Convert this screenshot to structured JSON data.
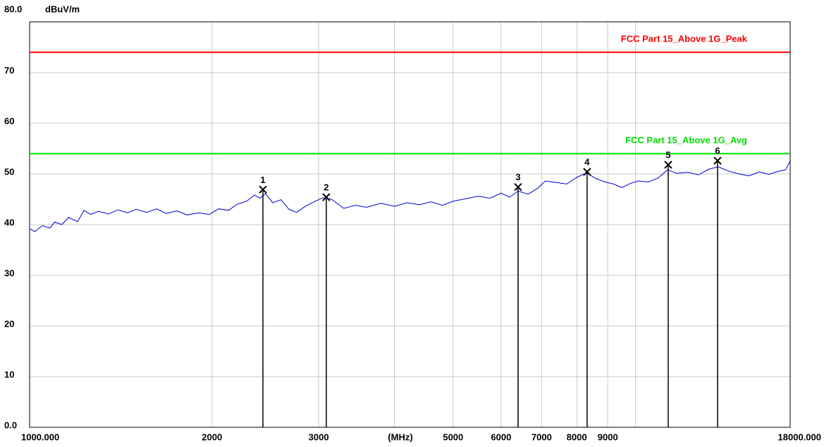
{
  "chart_data": {
    "type": "emission-scan",
    "y_unit": "dBuV/m",
    "xlabel": "(MHz)",
    "xscale": "log",
    "xlim": [
      1000,
      18000
    ],
    "ylim": [
      0,
      80
    ],
    "xticks": [
      {
        "value": 1000,
        "label": "1000.000"
      },
      2000,
      3000,
      5000,
      6000,
      7000,
      8000,
      9000,
      {
        "value": 18000,
        "label": "18000.000"
      }
    ],
    "xminor": [
      4000,
      10000
    ],
    "yticks": [
      {
        "value": 0,
        "label": "0.0"
      },
      10,
      20,
      30,
      40,
      50,
      60,
      70,
      {
        "value": 80,
        "label": "80.0"
      }
    ],
    "grid": true,
    "limits": [
      {
        "name": "FCC Part 15_Above 1G_Peak",
        "value": 74,
        "color": "#ff0000"
      },
      {
        "name": "FCC Part 15_Above 1G_Avg",
        "value": 54,
        "color": "#00e000"
      }
    ],
    "trace": {
      "color": "#0000dd",
      "x": [
        1000,
        1020,
        1050,
        1080,
        1100,
        1130,
        1160,
        1200,
        1230,
        1260,
        1300,
        1350,
        1400,
        1450,
        1500,
        1560,
        1620,
        1680,
        1750,
        1820,
        1900,
        1980,
        2050,
        2130,
        2200,
        2280,
        2350,
        2400,
        2450,
        2520,
        2600,
        2680,
        2760,
        2850,
        2950,
        3050,
        3150,
        3300,
        3450,
        3600,
        3800,
        4000,
        4200,
        4400,
        4600,
        4800,
        5000,
        5250,
        5500,
        5750,
        6000,
        6200,
        6400,
        6650,
        6900,
        7100,
        7400,
        7700,
        8000,
        8300,
        8600,
        8900,
        9200,
        9500,
        9800,
        10100,
        10500,
        10900,
        11300,
        11700,
        12200,
        12700,
        13200,
        13700,
        14200,
        14800,
        15400,
        16000,
        16600,
        17200,
        17700,
        18000
      ],
      "values": [
        39.2,
        38.6,
        39.8,
        39.3,
        40.5,
        40.0,
        41.4,
        40.6,
        42.8,
        42.0,
        42.6,
        42.1,
        42.9,
        42.3,
        43.0,
        42.4,
        43.1,
        42.2,
        42.7,
        41.9,
        42.3,
        42.0,
        43.1,
        42.8,
        44.0,
        44.6,
        45.8,
        45.2,
        46.1,
        44.3,
        44.9,
        43.0,
        42.4,
        43.6,
        44.5,
        45.3,
        45.0,
        43.2,
        43.8,
        43.4,
        44.2,
        43.6,
        44.3,
        43.9,
        44.5,
        43.8,
        44.6,
        45.1,
        45.6,
        45.2,
        46.2,
        45.4,
        46.6,
        46.0,
        47.2,
        48.6,
        48.3,
        48.0,
        49.3,
        50.2,
        49.1,
        48.4,
        48.0,
        47.3,
        48.1,
        48.6,
        48.4,
        49.2,
        50.8,
        50.1,
        50.3,
        49.8,
        50.9,
        51.4,
        50.6,
        50.0,
        49.6,
        50.4,
        49.9,
        50.5,
        50.8,
        52.6
      ]
    },
    "markers": [
      {
        "label": "1",
        "x": 2427,
        "value": 46.9
      },
      {
        "label": "2",
        "x": 3088,
        "value": 45.4
      },
      {
        "label": "3",
        "x": 6400,
        "value": 47.4
      },
      {
        "label": "4",
        "x": 8320,
        "value": 50.4
      },
      {
        "label": "5",
        "x": 11324,
        "value": 51.8
      },
      {
        "label": "6",
        "x": 13660,
        "value": 52.6
      }
    ]
  }
}
